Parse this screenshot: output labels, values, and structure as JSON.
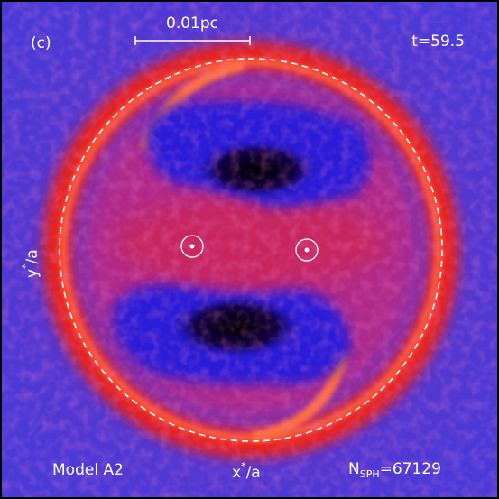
{
  "panel_label": "(c)",
  "scale_bar_label": "0.01pc",
  "time_label": "t=59.5",
  "model_label": "Model A2",
  "x_axis_label": {
    "base": "x",
    "sup": "*",
    "rest": "/a"
  },
  "y_axis_label": {
    "base": "y",
    "sup": "*",
    "rest": "/a"
  },
  "particle_count_label": {
    "base": "N",
    "sub": "SPH",
    "rest": "=67129"
  }
}
